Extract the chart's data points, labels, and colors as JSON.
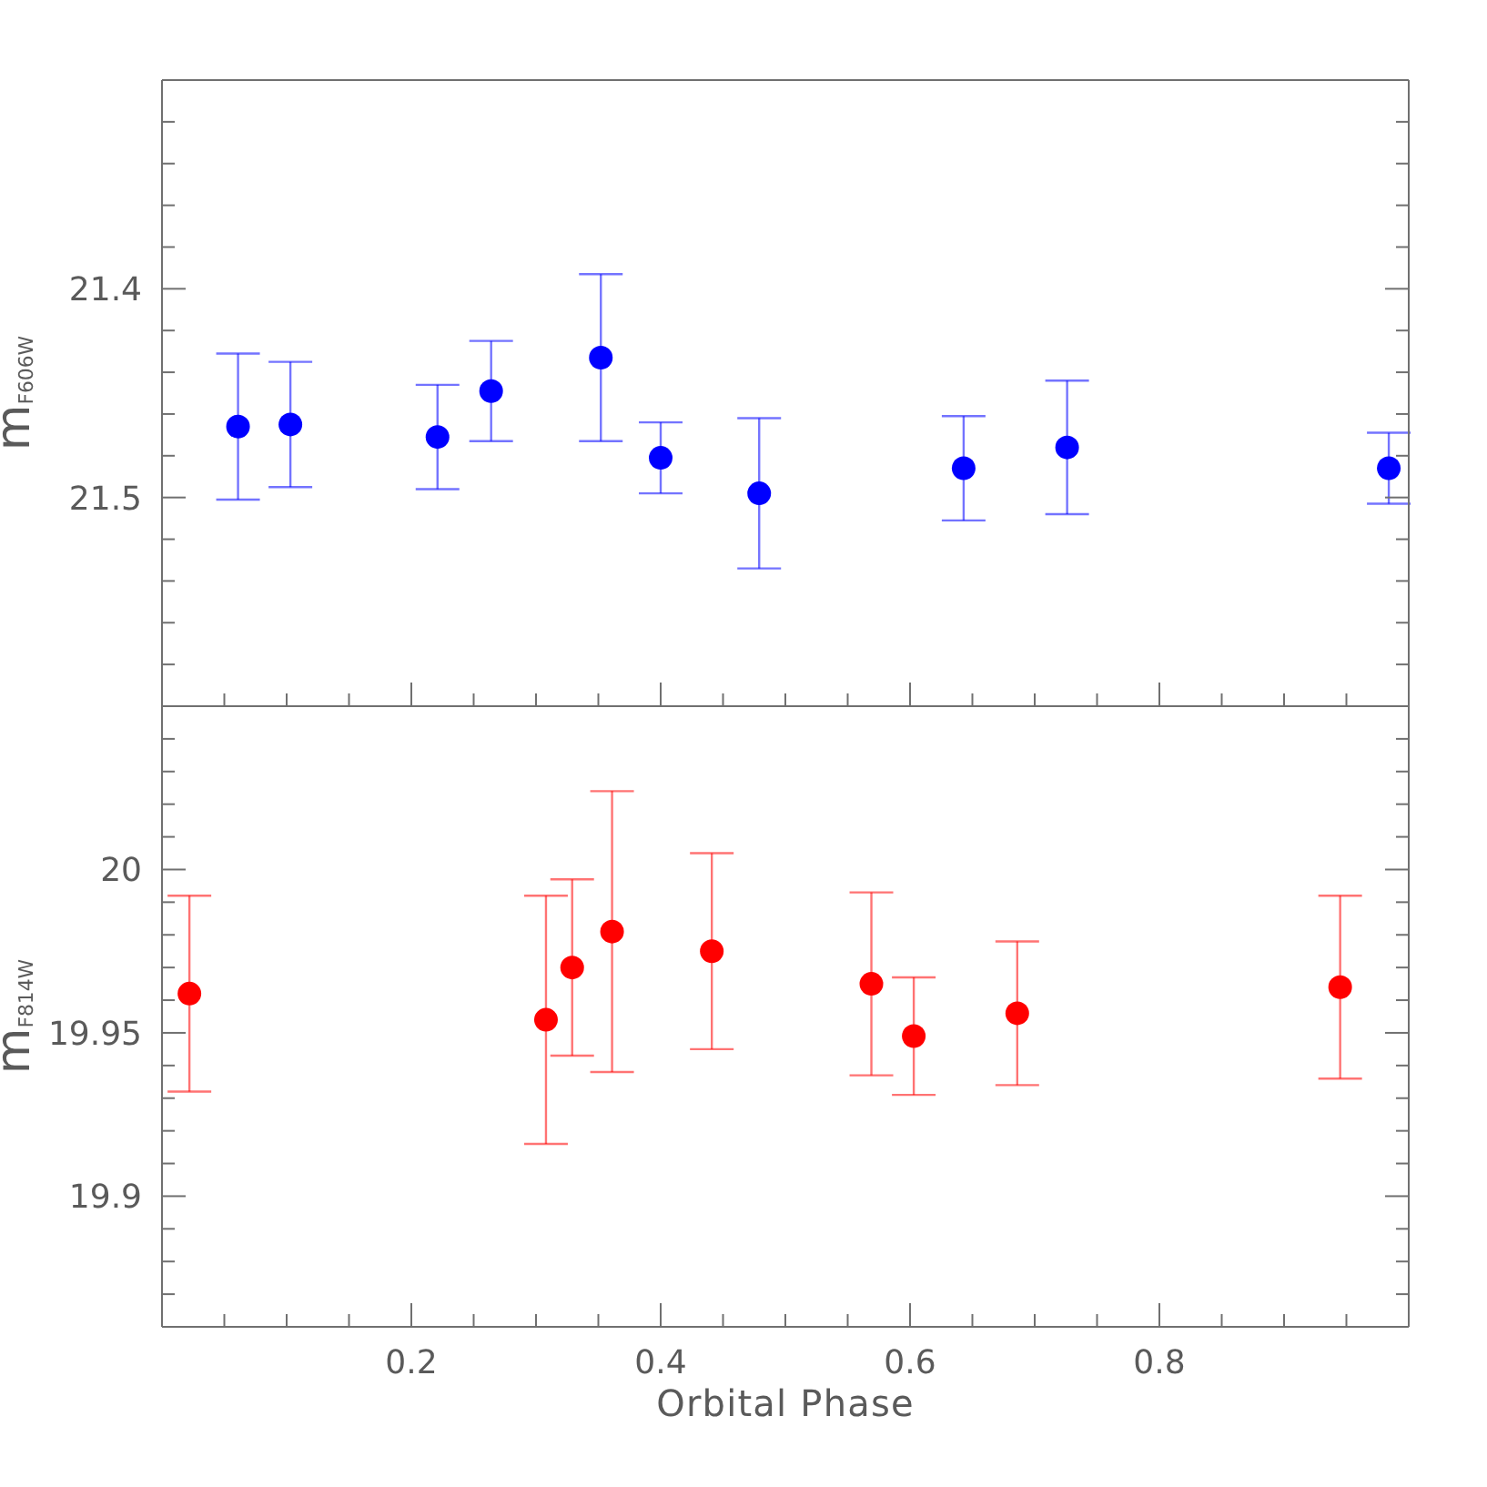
{
  "chart_data": [
    {
      "type": "scatter",
      "ylabel": "m$_{F606W}$",
      "x": [
        0.061,
        0.103,
        0.221,
        0.264,
        0.352,
        0.4,
        0.479,
        0.643,
        0.726,
        0.984
      ],
      "values": [
        21.466,
        21.465,
        21.471,
        21.449,
        21.433,
        21.481,
        21.498,
        21.486,
        21.476,
        21.486
      ],
      "errors": [
        0.035,
        0.03,
        0.025,
        0.024,
        0.04,
        0.017,
        0.036,
        0.025,
        0.032,
        0.017
      ],
      "color": "#0000ff",
      "marker": "circle",
      "xlim": [
        0,
        1
      ],
      "xticks": [
        {
          "value": 0.05,
          "label": null
        },
        {
          "value": 0.1,
          "label": null
        },
        {
          "value": 0.15,
          "label": null
        },
        0.2,
        {
          "value": 0.25,
          "label": null
        },
        {
          "value": 0.3,
          "label": null
        },
        {
          "value": 0.35,
          "label": null
        },
        0.4,
        {
          "value": 0.45,
          "label": null
        },
        {
          "value": 0.5,
          "label": null
        },
        {
          "value": 0.55,
          "label": null
        },
        0.6,
        {
          "value": 0.65,
          "label": null
        },
        {
          "value": 0.7,
          "label": null
        },
        {
          "value": 0.75,
          "label": null
        },
        0.8,
        {
          "value": 0.85,
          "label": null
        },
        {
          "value": 0.9,
          "label": null
        },
        {
          "value": 0.95,
          "label": null
        }
      ],
      "ylim": [
        21.6,
        21.3
      ],
      "yticks": [
        {
          "value": 21.32,
          "label": null
        },
        {
          "value": 21.34,
          "label": null
        },
        {
          "value": 21.36,
          "label": null
        },
        {
          "value": 21.38,
          "label": null
        },
        21.4,
        {
          "value": 21.42,
          "label": null
        },
        {
          "value": 21.44,
          "label": null
        },
        {
          "value": 21.46,
          "label": null
        },
        {
          "value": 21.48,
          "label": null
        },
        21.5,
        {
          "value": 21.52,
          "label": null
        },
        {
          "value": 21.54,
          "label": null
        },
        {
          "value": 21.56,
          "label": null
        },
        {
          "value": 21.58,
          "label": null
        }
      ],
      "tick_labels": "y"
    },
    {
      "type": "scatter",
      "xlabel": "Orbital Phase",
      "ylabel": "m$_{F814W}$",
      "x": [
        0.022,
        0.308,
        0.329,
        0.361,
        0.441,
        0.569,
        0.603,
        0.686,
        0.945
      ],
      "values": [
        19.962,
        19.954,
        19.97,
        19.981,
        19.975,
        19.965,
        19.949,
        19.956,
        19.964
      ],
      "errors": [
        0.03,
        0.038,
        0.027,
        0.043,
        0.03,
        0.028,
        0.018,
        0.022,
        0.028
      ],
      "color": "#ff0000",
      "marker": "circle",
      "xlim": [
        0,
        1
      ],
      "xticks": [
        {
          "value": 0.05,
          "label": null
        },
        {
          "value": 0.1,
          "label": null
        },
        {
          "value": 0.15,
          "label": null
        },
        0.2,
        {
          "value": 0.25,
          "label": null
        },
        {
          "value": 0.3,
          "label": null
        },
        {
          "value": 0.35,
          "label": null
        },
        0.4,
        {
          "value": 0.45,
          "label": null
        },
        {
          "value": 0.5,
          "label": null
        },
        {
          "value": 0.55,
          "label": null
        },
        0.6,
        {
          "value": 0.65,
          "label": null
        },
        {
          "value": 0.7,
          "label": null
        },
        {
          "value": 0.75,
          "label": null
        },
        0.8,
        {
          "value": 0.85,
          "label": null
        },
        {
          "value": 0.9,
          "label": null
        },
        {
          "value": 0.95,
          "label": null
        }
      ],
      "ylim": [
        19.86,
        20.05
      ],
      "yticks": [
        {
          "value": 19.87,
          "label": null
        },
        {
          "value": 19.88,
          "label": null
        },
        {
          "value": 19.89,
          "label": null
        },
        19.9,
        {
          "value": 19.91,
          "label": null
        },
        {
          "value": 19.92,
          "label": null
        },
        {
          "value": 19.93,
          "label": null
        },
        {
          "value": 19.94,
          "label": null
        },
        19.95,
        {
          "value": 19.96,
          "label": null
        },
        {
          "value": 19.97,
          "label": null
        },
        {
          "value": 19.98,
          "label": null
        },
        {
          "value": 19.99,
          "label": null
        },
        20,
        {
          "value": 20.01,
          "label": null
        },
        {
          "value": 20.02,
          "label": null
        },
        {
          "value": 20.03,
          "label": null
        },
        {
          "value": 20.04,
          "label": null
        }
      ]
    }
  ]
}
